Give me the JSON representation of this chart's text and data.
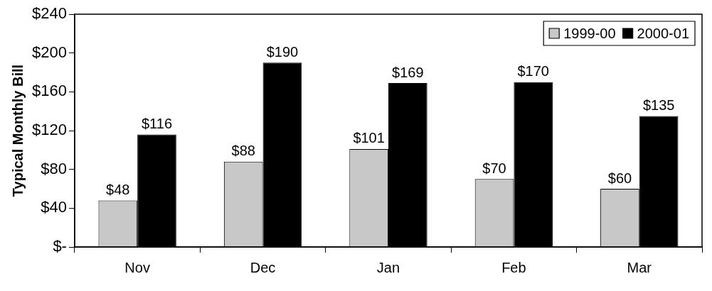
{
  "chart_data": {
    "type": "bar",
    "ylabel": "Typical Monthly Bill",
    "categories": [
      "Nov",
      "Dec",
      "Jan",
      "Feb",
      "Mar"
    ],
    "series": [
      {
        "name": "1999-00",
        "color": "#c8c8c8",
        "values": [
          48,
          88,
          101,
          70,
          60
        ],
        "value_labels": [
          "$48",
          "$88",
          "$101",
          "$70",
          "$60"
        ]
      },
      {
        "name": "2000-01",
        "color": "#000000",
        "values": [
          116,
          190,
          169,
          170,
          135
        ],
        "value_labels": [
          "$116",
          "$190",
          "$169",
          "$170",
          "$135"
        ]
      }
    ],
    "ylim": [
      0,
      240
    ],
    "yticks": [
      {
        "value": 0,
        "label": "$-"
      },
      {
        "value": 40,
        "label": "$40"
      },
      {
        "value": 80,
        "label": "$80"
      },
      {
        "value": 120,
        "label": "$120"
      },
      {
        "value": 160,
        "label": "$160"
      },
      {
        "value": 200,
        "label": "$200"
      },
      {
        "value": 240,
        "label": "$240"
      }
    ],
    "grid": false,
    "legend": "top right"
  }
}
